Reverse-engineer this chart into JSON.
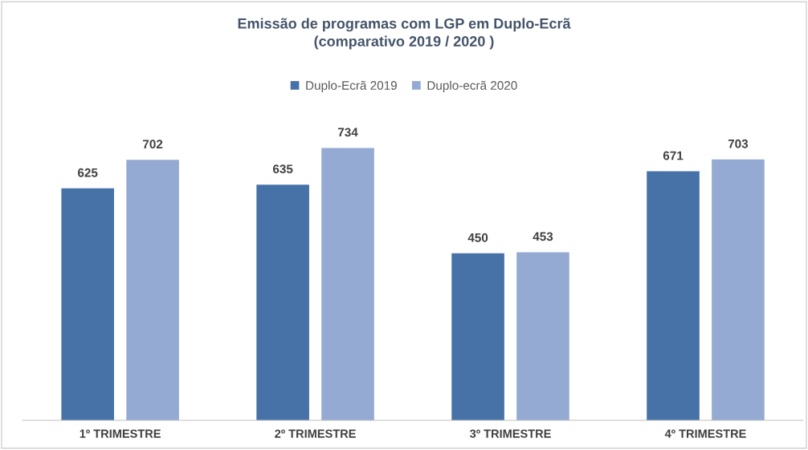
{
  "chart_data": {
    "type": "bar",
    "title": "Emissão de programas com LGP em Duplo-Ecrã\n(comparativo 2019 / 2020 )",
    "categories": [
      "1º TRIMESTRE",
      "2º TRIMESTRE",
      "3º TRIMESTRE",
      "4º TRIMESTRE"
    ],
    "series": [
      {
        "name": "Duplo-Ecrã 2019",
        "color": "#4672a8",
        "values": [
          625,
          635,
          450,
          671
        ]
      },
      {
        "name": "Duplo-ecrã 2020",
        "color": "#95aad2",
        "values": [
          702,
          734,
          453,
          703
        ]
      }
    ],
    "data_labels": true,
    "legend": "top",
    "grid": false
  }
}
